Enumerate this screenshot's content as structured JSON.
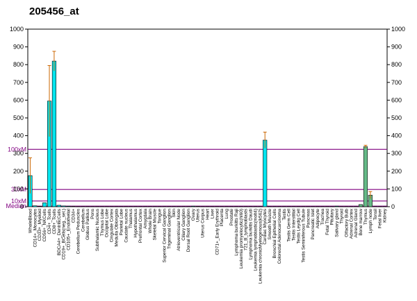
{
  "chart_data": {
    "type": "bar",
    "title": "205456_at",
    "ylim": [
      0,
      1000
    ],
    "yticks_left": [
      0,
      100,
      200,
      300,
      400,
      500,
      600,
      700,
      800,
      900,
      1000
    ],
    "yticks_right": [
      0,
      100,
      200,
      300,
      400,
      500,
      600,
      700,
      800,
      900,
      1000
    ],
    "grid": false,
    "reference_lines": [
      {
        "label": "100xM",
        "value": 323,
        "color": "#800080"
      },
      {
        "label": "30xM",
        "value": 97,
        "color": "#800080"
      },
      {
        "label": "10xM",
        "value": 32,
        "color": "#800080"
      },
      {
        "label": "Median",
        "value": 3,
        "color": "#800080"
      }
    ],
    "categories": [
      "WholeBlood",
      "CD14+_Monocytes",
      "CD33+_Myeloid",
      "CD56+_NKCells",
      "CD4+_Tcells",
      "CD8+_Tcells",
      "BDCA4+_DentriticCells",
      "CD19+_BCells(neg._sel.)",
      "CD105+_Endothelial",
      "CD34+",
      "Cerebellum Peduncles",
      "Cerebellum",
      "Globus Pallidus",
      "Pons",
      "Subthalamic Nucleus",
      "Thymus Lobe",
      "Occipital Lobe",
      "Cingulate Cortex",
      "Medulla Oblongata",
      "Parietal Lobe",
      "Caudate nucleus",
      "Thalamus",
      "Hypothalamus",
      "Prefrontal Cortex",
      "Amygdala",
      "Whole Brain",
      "Skeletal Muscle",
      "Tongue",
      "Superior Cervical Ganglion",
      "Trigeminal Ganglion",
      "Skin",
      "Atrioventricular Node",
      "Ciliary Ganglion",
      "Dorsal Root Ganglion",
      "Ovary",
      "Uterus",
      "Uterus Corpus",
      "Heart",
      "Liver",
      "CD71+_Early Erythroid",
      "Placenta",
      "Lung",
      "Prostate",
      "Lymphoma burkitts Raji",
      "Leukemia promyelocytic(hl60)",
      "721_B_lymphoblasts",
      "Lymphoma burkitts Daudi",
      "Leukemia lymphoblastic(molt4)",
      "Leukemia chronicMyelogenous(k562)",
      "Cardiac Myocytes",
      "Smooth Muscle",
      "Bronchial Epithelial Cells",
      "Colorectal Adenocarcinoma",
      "Testis",
      "Testis Germ Cell",
      "Testis Interstitial",
      "Testis Leydig Cell",
      "Testis Seminiferous Tubule",
      "Pancreas",
      "Pancreatic Islet",
      "Adipocyte",
      "Trachea",
      "Fetal Thyroid",
      "Pituitary",
      "Salivary gland",
      "Thyroid",
      "Olfactory Bulb",
      "Adrenal Cortex",
      "Adrenal Gland",
      "Bone marrow",
      "Thymus",
      "Lymph node",
      "Tonsil",
      "Fetal liver",
      "Kidney"
    ],
    "series": [
      {
        "color": "#00e5ee",
        "values": [
          175,
          5,
          2,
          22,
          595,
          820,
          8,
          4,
          3,
          2,
          1,
          1,
          1,
          1,
          1,
          1,
          1,
          1,
          1,
          1,
          1,
          1,
          1,
          1,
          1,
          1,
          1,
          1,
          1,
          1,
          1,
          1,
          1,
          1,
          3,
          2,
          1,
          1,
          1,
          1,
          1,
          1,
          1,
          1,
          1,
          1,
          1,
          1,
          1,
          375,
          1,
          1,
          1,
          1,
          1,
          1,
          1,
          1,
          1,
          1,
          1,
          1,
          1,
          1,
          3,
          1,
          1,
          1,
          1,
          1,
          1,
          1,
          1,
          1,
          1
        ],
        "errors": [
          100,
          0,
          0,
          0,
          200,
          55,
          0,
          0,
          0,
          0,
          0,
          0,
          0,
          0,
          0,
          0,
          0,
          0,
          0,
          0,
          0,
          0,
          0,
          0,
          0,
          0,
          0,
          0,
          0,
          0,
          0,
          0,
          0,
          0,
          0,
          0,
          0,
          0,
          0,
          0,
          0,
          0,
          0,
          0,
          0,
          0,
          0,
          0,
          0,
          45,
          0,
          0,
          0,
          0,
          0,
          0,
          0,
          0,
          0,
          0,
          0,
          0,
          0,
          0,
          0,
          0,
          0,
          0,
          0,
          0,
          0,
          0,
          0,
          0,
          0
        ]
      },
      {
        "color": "#66bb88",
        "values": [
          0,
          0,
          0,
          0,
          0,
          0,
          0,
          0,
          0,
          0,
          0,
          0,
          0,
          0,
          0,
          0,
          0,
          0,
          0,
          0,
          0,
          0,
          0,
          0,
          0,
          0,
          0,
          0,
          0,
          0,
          0,
          0,
          0,
          0,
          0,
          0,
          0,
          0,
          0,
          0,
          0,
          0,
          0,
          0,
          0,
          0,
          0,
          0,
          0,
          0,
          0,
          0,
          0,
          0,
          0,
          0,
          0,
          0,
          0,
          0,
          0,
          0,
          0,
          0,
          0,
          0,
          0,
          0,
          0,
          12,
          338,
          65,
          0,
          0,
          0
        ],
        "errors": [
          0,
          0,
          0,
          0,
          0,
          0,
          0,
          0,
          0,
          0,
          0,
          0,
          0,
          0,
          0,
          0,
          0,
          0,
          0,
          0,
          0,
          0,
          0,
          0,
          0,
          0,
          0,
          0,
          0,
          0,
          0,
          0,
          0,
          0,
          0,
          0,
          0,
          0,
          0,
          0,
          0,
          0,
          0,
          0,
          0,
          0,
          0,
          0,
          0,
          0,
          0,
          0,
          0,
          0,
          0,
          0,
          0,
          0,
          0,
          0,
          0,
          0,
          0,
          0,
          0,
          0,
          0,
          0,
          0,
          0,
          8,
          20,
          0,
          0,
          0
        ]
      }
    ],
    "error_color": "#cc6600"
  }
}
